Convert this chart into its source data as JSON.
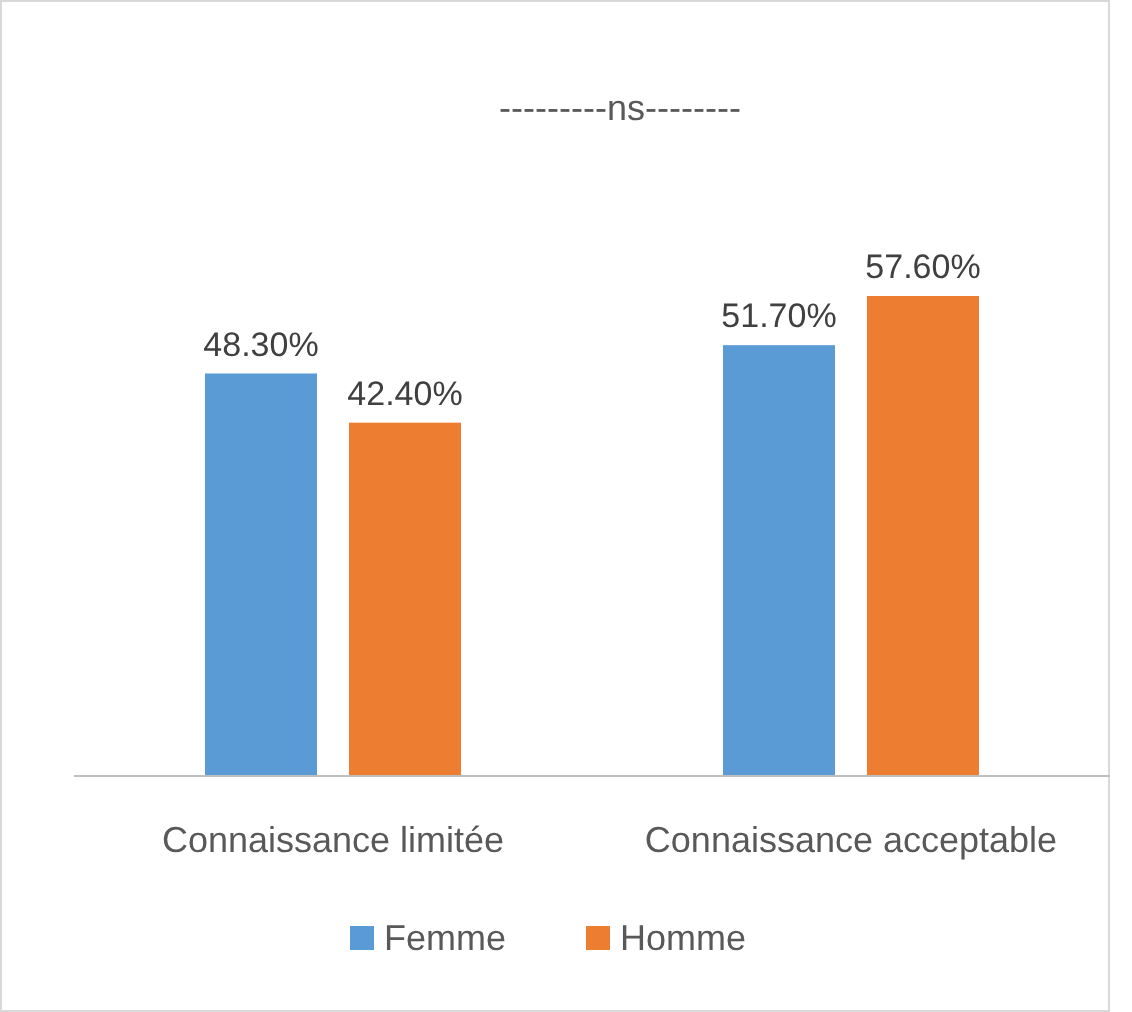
{
  "chart_data": {
    "type": "bar",
    "categories": [
      "Connaissance limitée",
      "Connaissance acceptable"
    ],
    "series": [
      {
        "name": "Femme",
        "color": "#5b9bd5",
        "values": [
          48.3,
          51.7
        ],
        "value_labels": [
          "48.30%",
          "51.70%"
        ]
      },
      {
        "name": "Homme",
        "color": "#ed7d31",
        "values": [
          42.4,
          57.6
        ],
        "value_labels": [
          "42.40%",
          "57.60%"
        ]
      }
    ],
    "legend": "bottom",
    "grid": false,
    "annotations": [
      "---------ns--------"
    ]
  }
}
